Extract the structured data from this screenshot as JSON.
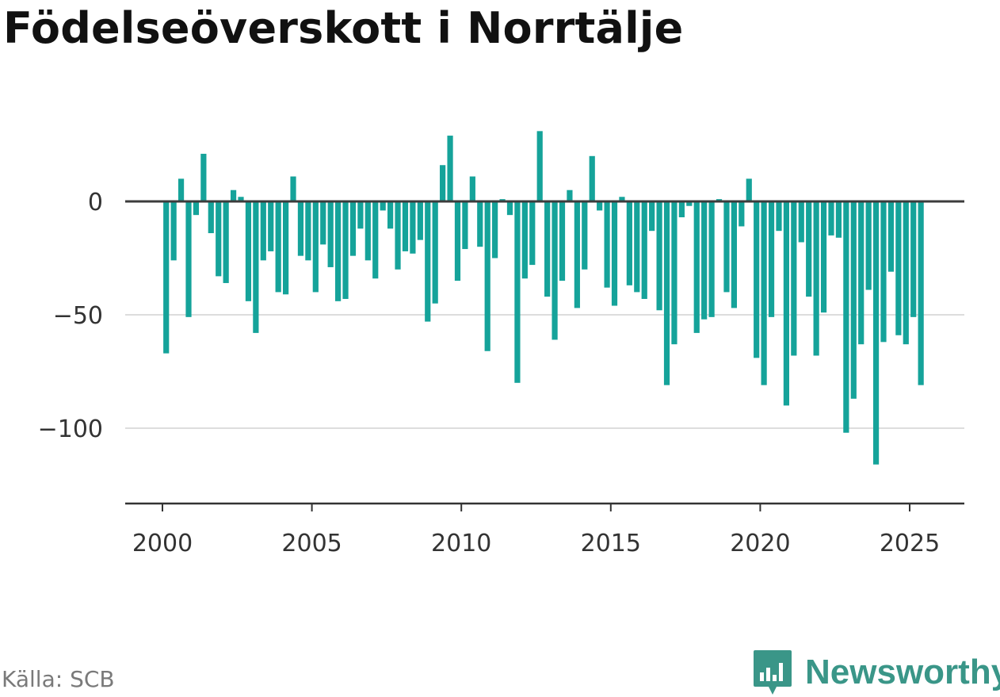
{
  "title": "Födelseöverskott i Norrtälje",
  "source": "Källa: SCB",
  "brand": {
    "name": "Newsworthy",
    "logo_icon": "bar-chart-speech-bubble-icon",
    "color": "#3a9688"
  },
  "colors": {
    "bar": "#15a39a",
    "zero_line": "#3c3c3c",
    "grid": "#dddddd",
    "axis": "#333333"
  },
  "chart_data": {
    "type": "bar",
    "title": "Födelseöverskott i Norrtälje",
    "xlabel": "",
    "ylabel": "",
    "x_ticks": [
      2000,
      2005,
      2010,
      2015,
      2020,
      2025
    ],
    "x_tick_labels": [
      "2000",
      "2005",
      "2010",
      "2015",
      "2020",
      "2025"
    ],
    "y_ticks": [
      0,
      -50,
      -100
    ],
    "y_tick_labels": [
      "0",
      "−50",
      "−100"
    ],
    "xlim": [
      1998.55,
      2026.75
    ],
    "ylim": [
      -133,
      30
    ],
    "grid": "horizontal",
    "frequency": "quarterly",
    "x": [
      2000.125,
      2000.375,
      2000.625,
      2000.875,
      2001.125,
      2001.375,
      2001.625,
      2001.875,
      2002.125,
      2002.375,
      2002.625,
      2002.875,
      2003.125,
      2003.375,
      2003.625,
      2003.875,
      2004.125,
      2004.375,
      2004.625,
      2004.875,
      2005.125,
      2005.375,
      2005.625,
      2005.875,
      2006.125,
      2006.375,
      2006.625,
      2006.875,
      2007.125,
      2007.375,
      2007.625,
      2007.875,
      2008.125,
      2008.375,
      2008.625,
      2008.875,
      2009.125,
      2009.375,
      2009.625,
      2009.875,
      2010.125,
      2010.375,
      2010.625,
      2010.875,
      2011.125,
      2011.375,
      2011.625,
      2011.875,
      2012.125,
      2012.375,
      2012.625,
      2012.875,
      2013.125,
      2013.375,
      2013.625,
      2013.875,
      2014.125,
      2014.375,
      2014.625,
      2014.875,
      2015.125,
      2015.375,
      2015.625,
      2015.875,
      2016.125,
      2016.375,
      2016.625,
      2016.875,
      2017.125,
      2017.375,
      2017.625,
      2017.875,
      2018.125,
      2018.375,
      2018.625,
      2018.875,
      2019.125,
      2019.375,
      2019.625,
      2019.875,
      2020.125,
      2020.375,
      2020.625,
      2020.875,
      2021.125,
      2021.375,
      2021.625,
      2021.875,
      2022.125,
      2022.375,
      2022.625,
      2022.875,
      2023.125,
      2023.375,
      2023.625,
      2023.875,
      2024.125,
      2024.375,
      2024.625,
      2024.875,
      2025.125,
      2025.375
    ],
    "values": [
      -67,
      -26,
      10,
      -51,
      -6,
      21,
      -14,
      -33,
      -36,
      5,
      2,
      -44,
      -58,
      -26,
      -22,
      -40,
      -41,
      11,
      -24,
      -26,
      -40,
      -19,
      -29,
      -44,
      -43,
      -24,
      -12,
      -26,
      -34,
      -4,
      -12,
      -30,
      -22,
      -23,
      -17,
      -53,
      -45,
      16,
      29,
      -35,
      -21,
      11,
      -20,
      -66,
      -25,
      1,
      -6,
      -80,
      -34,
      -28,
      31,
      -42,
      -61,
      -35,
      5,
      -47,
      -30,
      20,
      -4,
      -38,
      -46,
      2,
      -37,
      -40,
      -43,
      -13,
      -48,
      -81,
      -63,
      -7,
      -2,
      -58,
      -52,
      -51,
      1,
      -40,
      -47,
      -11,
      10,
      -69,
      -81,
      -51,
      -13,
      -90,
      -68,
      -18,
      -42,
      -68,
      -49,
      -15,
      -16,
      -102,
      -87,
      -63,
      -39,
      -116,
      -62,
      -31,
      -59,
      -63,
      -51,
      -81
    ]
  }
}
